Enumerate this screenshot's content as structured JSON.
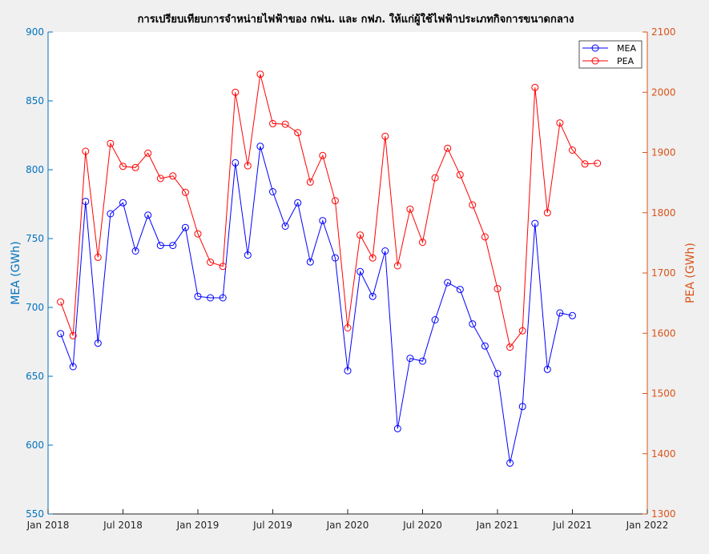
{
  "chart_data": {
    "type": "line",
    "title": "การเปรียบเทียบการจำหน่ายไฟฟ้าของ กฟน. และ กฟภ. ให้แก่ผู้ใช้ไฟฟ้าประเภทกิจการขนาดกลาง",
    "xlabel": "",
    "x_axis": {
      "type": "date",
      "range": [
        "2018-01",
        "2022-01"
      ],
      "ticks": [
        "2018-01",
        "2018-07",
        "2019-01",
        "2019-07",
        "2020-01",
        "2020-07",
        "2021-01",
        "2021-07",
        "2022-01"
      ],
      "tick_labels": [
        "Jan 2018",
        "Jul 2018",
        "Jan 2019",
        "Jul 2019",
        "Jan 2020",
        "Jul 2020",
        "Jan 2021",
        "Jul 2021",
        "Jan 2022"
      ]
    },
    "y_left": {
      "label": "MEA (GWh)",
      "range": [
        550,
        900
      ],
      "ticks": [
        550,
        600,
        650,
        700,
        750,
        800,
        850,
        900
      ],
      "color": "#0072BD"
    },
    "y_right": {
      "label": "PEA (GWh)",
      "range": [
        1300,
        2100
      ],
      "ticks": [
        1300,
        1400,
        1500,
        1600,
        1700,
        1800,
        1900,
        2000,
        2100
      ],
      "color": "#D95319"
    },
    "grid": false,
    "legend_position": "top-right",
    "series": [
      {
        "name": "MEA",
        "axis": "left",
        "color": "#0000ff",
        "marker": "circle",
        "x": [
          "2018-02",
          "2018-03",
          "2018-04",
          "2018-05",
          "2018-06",
          "2018-07",
          "2018-08",
          "2018-09",
          "2018-10",
          "2018-11",
          "2018-12",
          "2019-01",
          "2019-02",
          "2019-03",
          "2019-04",
          "2019-05",
          "2019-06",
          "2019-07",
          "2019-08",
          "2019-09",
          "2019-10",
          "2019-11",
          "2019-12",
          "2020-01",
          "2020-02",
          "2020-03",
          "2020-04",
          "2020-05",
          "2020-06",
          "2020-07",
          "2020-08",
          "2020-09",
          "2020-10",
          "2020-11",
          "2020-12",
          "2021-01",
          "2021-02",
          "2021-03",
          "2021-04",
          "2021-05",
          "2021-06",
          "2021-07"
        ],
        "values": [
          681,
          657,
          777,
          674,
          768,
          776,
          741,
          767,
          745,
          745,
          758,
          708,
          707,
          707,
          805,
          738,
          817,
          784,
          759,
          776,
          733,
          763,
          736,
          654,
          726,
          708,
          741,
          612,
          663,
          661,
          691,
          718,
          713,
          688,
          672,
          652,
          587,
          628,
          761,
          655,
          696,
          694
        ]
      },
      {
        "name": "PEA",
        "axis": "right",
        "color": "#ff0000",
        "marker": "circle",
        "x": [
          "2018-02",
          "2018-03",
          "2018-04",
          "2018-05",
          "2018-06",
          "2018-07",
          "2018-08",
          "2018-09",
          "2018-10",
          "2018-11",
          "2018-12",
          "2019-01",
          "2019-02",
          "2019-03",
          "2019-04",
          "2019-05",
          "2019-06",
          "2019-07",
          "2019-08",
          "2019-09",
          "2019-10",
          "2019-11",
          "2019-12",
          "2020-01",
          "2020-02",
          "2020-03",
          "2020-04",
          "2020-05",
          "2020-06",
          "2020-07",
          "2020-08",
          "2020-09",
          "2020-10",
          "2020-11",
          "2020-12",
          "2021-01",
          "2021-02",
          "2021-03",
          "2021-04",
          "2021-05",
          "2021-06",
          "2021-07",
          "2021-08",
          "2021-09"
        ],
        "values": [
          1652,
          1596,
          1902,
          1726,
          1915,
          1877,
          1875,
          1899,
          1857,
          1861,
          1834,
          1765,
          1718,
          1711,
          2000,
          1878,
          2030,
          1948,
          1947,
          1933,
          1851,
          1895,
          1820,
          1609,
          1763,
          1725,
          1927,
          1712,
          1806,
          1751,
          1858,
          1907,
          1863,
          1813,
          1760,
          1674,
          1577,
          1604,
          2008,
          1800,
          1949,
          1904,
          1881,
          1882
        ]
      }
    ]
  }
}
